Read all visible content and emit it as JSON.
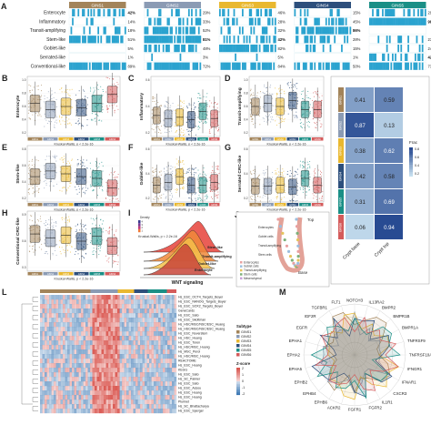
{
  "panels": {
    "A": "A",
    "B": "B",
    "C": "C",
    "D": "D",
    "E": "E",
    "F": "F",
    "G": "G",
    "H": "H",
    "I": "I",
    "J": "J",
    "K": "K",
    "L": "L",
    "M": "M"
  },
  "colors": {
    "GINS1": "#a3845a",
    "GINS2": "#8b9bb4",
    "GINS3": "#e9b830",
    "GINS4": "#2d4f7c",
    "GINS5": "#1a8f86",
    "GINS6": "#d45b5b",
    "cyan": "#2aa3cf",
    "heat_high": "#d9544d",
    "heat_low": "#3c78b4"
  },
  "panelA": {
    "groups": [
      "GINS1",
      "GINS2",
      "GINS3",
      "GINS4",
      "GINS5",
      "GINS6"
    ],
    "rows": [
      {
        "label": "Enterocyte",
        "pcts": [
          "42%",
          "29%",
          "46%",
          "15%",
          "29%",
          ""
        ]
      },
      {
        "label": "Inflammatory",
        "pcts": [
          "14%",
          "33%",
          "28%",
          "45%",
          "98%",
          "2%"
        ]
      },
      {
        "label": "Transit-amplifying",
        "pcts": [
          "18%",
          "52%",
          "32%",
          "86%",
          "",
          "26%"
        ]
      },
      {
        "label": "Stem-like",
        "pcts": [
          "51%",
          "81%",
          "42%",
          "28%",
          "23%",
          "2%"
        ]
      },
      {
        "label": "Goblet-like",
        "pcts": [
          "5%",
          "48%",
          "82%",
          "15%",
          "24%",
          "39%"
        ]
      },
      {
        "label": "Serrated-like",
        "pcts": [
          "1%",
          "3%",
          "5%",
          "1%",
          "42%",
          "10%"
        ]
      },
      {
        "label": "Conventional-like",
        "pcts": [
          "89%",
          "72%",
          "84%",
          "50%",
          "73%",
          "40%"
        ]
      }
    ],
    "bold_pcts": [
      "98%",
      "86%",
      "81%",
      "42%"
    ]
  },
  "boxplots": {
    "kw_text": "Kruskal-Wallis, p < 2.2e-16",
    "B": {
      "ylabel": "Enterocyte",
      "yticks": [
        "1.0",
        "0.8",
        "0.6",
        "0.4",
        "0.2"
      ],
      "medians": [
        0.55,
        0.45,
        0.5,
        0.48,
        0.55,
        0.7
      ]
    },
    "C": {
      "ylabel": "Inflammatory",
      "yticks": [
        "0.6",
        "0.4",
        "0.2"
      ],
      "medians": [
        0.35,
        0.3,
        0.32,
        0.28,
        0.42,
        0.3
      ]
    },
    "D": {
      "ylabel": "Transit-amplifying",
      "yticks": [
        "1.0",
        "0.8",
        "0.6",
        "0.4",
        "0.2"
      ],
      "medians": [
        0.5,
        0.55,
        0.5,
        0.6,
        0.45,
        0.45
      ]
    },
    "E": {
      "ylabel": "Stem-like",
      "yticks": [
        "0.8",
        "0.6",
        "0.4",
        "0.2"
      ],
      "medians": [
        0.45,
        0.55,
        0.5,
        0.45,
        0.42,
        0.25
      ]
    },
    "F": {
      "ylabel": "Goblet-like",
      "yticks": [
        "0.6",
        "0.4",
        "0.2"
      ],
      "medians": [
        0.3,
        0.35,
        0.45,
        0.3,
        0.3,
        0.35
      ]
    },
    "G": {
      "ylabel": "Serrated CRC-like",
      "yticks": [
        "0.6",
        "0.4",
        "0.2"
      ],
      "medians": [
        0.28,
        0.28,
        0.3,
        0.27,
        0.42,
        0.3
      ]
    },
    "H": {
      "ylabel": "Conventional CRC-like",
      "yticks": [
        "0.9",
        "0.6",
        "0.3"
      ],
      "medians": [
        0.62,
        0.55,
        0.6,
        0.5,
        0.58,
        0.42
      ]
    }
  },
  "panelI": {
    "legend_title": "Density",
    "legend_values": [
      "4",
      "3",
      "2",
      "1"
    ],
    "kw_text": "Kruskal-Wallis, p < 2.2e-16",
    "curves": [
      "Stem-like",
      "Transit-amplifying",
      "Goblet-like",
      "Enterocyte"
    ],
    "xlabel": "WNT signaling"
  },
  "panelJ": {
    "top": "Top",
    "base": "Base",
    "labels": [
      "Enterocytes",
      "Goblet cells",
      "Transit-amplifying",
      "Stem cells",
      "Enterocytes",
      "Goblet cells",
      "Transit-amplifying",
      "Stem cells",
      "Mesenchymal"
    ],
    "legend": [
      "Enterocytes",
      "Goblet cells",
      "Transit-amplifying",
      "Stem cells",
      "Mesenchymal"
    ]
  },
  "panelK": {
    "rows": [
      "GINS1",
      "GINS2",
      "GINS3",
      "GINS4",
      "GINS5",
      "GINS6"
    ],
    "cols": [
      "Crypt base",
      "Crypt top"
    ],
    "values": [
      [
        0.41,
        0.59
      ],
      [
        0.87,
        0.13
      ],
      [
        0.38,
        0.62
      ],
      [
        0.42,
        0.58
      ],
      [
        0.31,
        0.69
      ],
      [
        0.06,
        0.94
      ]
    ],
    "legend_title": "Frac",
    "legend_ticks": [
      "0.8",
      "0.6",
      "0.4",
      "0.2"
    ]
  },
  "panelL": {
    "row_labels": [
      "Hs_ESC_OCT4_Targets_Boyer",
      "Hs_ESC_NANOG_Targets_Boyer",
      "Hs_ESC_SOX2_Targets_Boyer",
      "GeneCards",
      "Hs_ESC_Sato",
      "Hs_ESC_Skottman",
      "Hs_HSC/MSC/NSC/ESC_Huang",
      "Hs_HSC/MSC/NSC/ESC_Huang",
      "Hs_ESC_Noverstem",
      "Hs_HSC_Huang",
      "Hs_ESC_Toren",
      "Hs_HSC/MSC_Huang",
      "Hs_MSC_Perol",
      "Hs_HSC/MSC_Huang",
      "REACTOME",
      "Hs_ESC_Huang",
      "KEGG",
      "Hs_ESC_Sato",
      "Hs_SC_Palmer",
      "Hs_ESC_Sato",
      "Hs_ESC_Assou",
      "Hs_ESC_Huang",
      "Hs_ESC_Huang",
      "Plurinet",
      "Hs_SC_Bhattacharya",
      "Hs_ESC_Sperger"
    ],
    "legend_title": "Subtype",
    "legend_items": [
      "GINS1",
      "GINS2",
      "GINS3",
      "GINS4",
      "GINS5",
      "GINS6"
    ],
    "zscore_title": "Z-score",
    "zscore_ticks": [
      "2",
      "1",
      "0",
      "-1",
      "-2"
    ]
  },
  "panelM": {
    "genes": [
      "NOTCH3",
      "IL13RA2",
      "BMPR2",
      "BMPR1B",
      "BMPR1A",
      "TNFRSF9",
      "TNFRSF10A",
      "IFNGR1",
      "IFNAR1",
      "CXCR3",
      "IL1R1",
      "FGFR2",
      "FGFR1",
      "ACKR2",
      "EPHB6",
      "EPHB4",
      "EPHB2",
      "EPHA5",
      "EPHA2",
      "EPHA1",
      "EGFR",
      "IGF2R",
      "TGFBR1",
      "FLT1"
    ]
  }
}
